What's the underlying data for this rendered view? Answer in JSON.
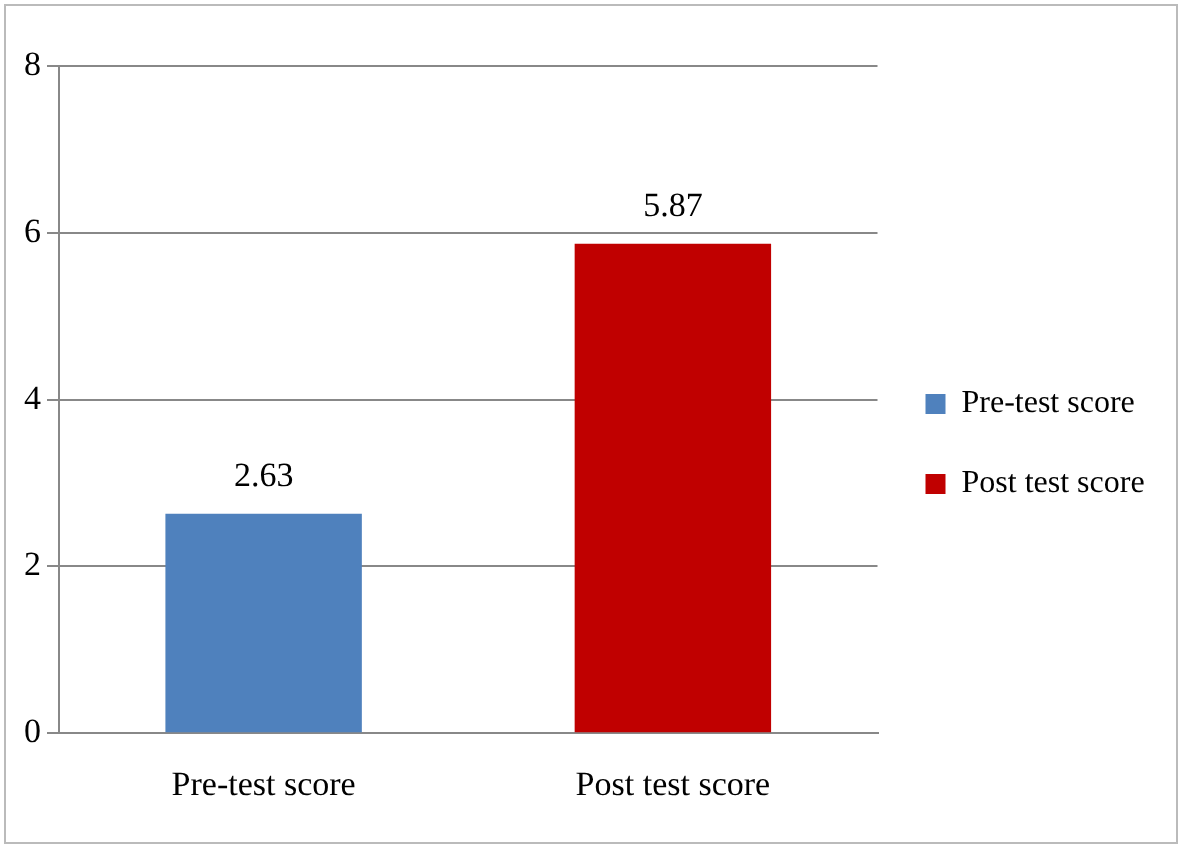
{
  "chart_data": {
    "type": "bar",
    "categories": [
      "Pre-test score",
      "Post test score"
    ],
    "series": [
      {
        "name": "Pre-test score",
        "color": "#4f81bd",
        "values": [
          2.63,
          null
        ]
      },
      {
        "name": "Post test score",
        "color": "#c00000",
        "values": [
          null,
          5.87
        ]
      }
    ],
    "ylim": [
      0,
      8
    ],
    "yticks": [
      0,
      2,
      4,
      6,
      8
    ],
    "grid": "y",
    "legend": "right",
    "data_labels": true
  }
}
